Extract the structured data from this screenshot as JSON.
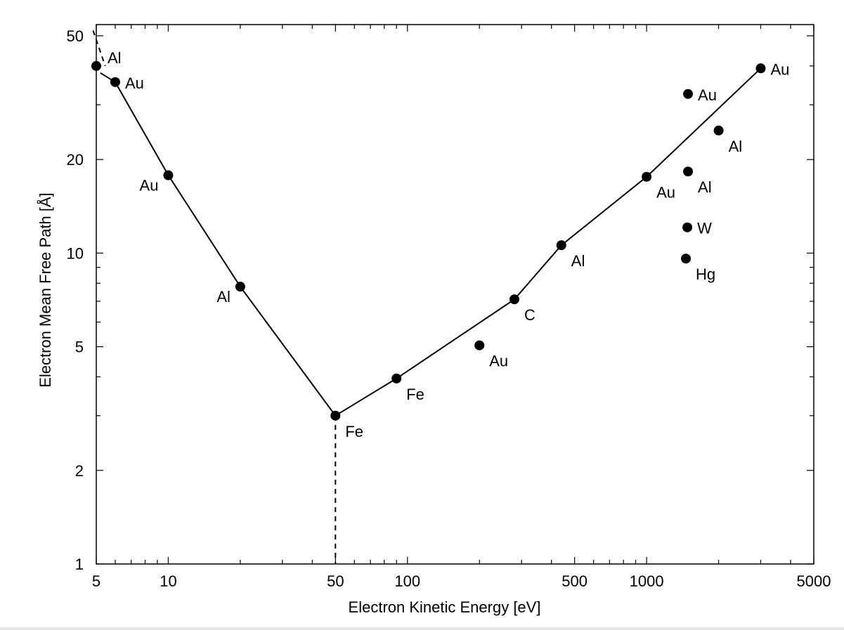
{
  "chart_data": {
    "type": "scatter",
    "title": "",
    "xlabel": "Electron Kinetic Energy  [eV]",
    "ylabel": "Electron Mean Free Path  [Å]",
    "x_scale": "log",
    "y_scale": "log",
    "xlim": [
      5,
      5000
    ],
    "ylim": [
      1,
      55
    ],
    "grid": false,
    "legend": "none",
    "x_ticks": [
      {
        "value": 5,
        "label": "5"
      },
      {
        "value": 10,
        "label": "10"
      },
      {
        "value": 50,
        "label": "50"
      },
      {
        "value": 100,
        "label": "100"
      },
      {
        "value": 500,
        "label": "500"
      },
      {
        "value": 1000,
        "label": "1000"
      },
      {
        "value": 5000,
        "label": "5000"
      }
    ],
    "y_ticks": [
      {
        "value": 1,
        "label": "1"
      },
      {
        "value": 2,
        "label": "2"
      },
      {
        "value": 5,
        "label": "5"
      },
      {
        "value": 10,
        "label": "10"
      },
      {
        "value": 20,
        "label": "20"
      },
      {
        "value": 50,
        "label": "50"
      }
    ],
    "points": [
      {
        "x": 5.0,
        "y": 40,
        "label": "Al",
        "pos": "ne"
      },
      {
        "x": 6.0,
        "y": 35.5,
        "label": "Au",
        "pos": "e"
      },
      {
        "x": 10.0,
        "y": 17.8,
        "label": "Au",
        "pos": "sw"
      },
      {
        "x": 20.0,
        "y": 7.8,
        "label": "Al",
        "pos": "sw"
      },
      {
        "x": 50.0,
        "y": 3.0,
        "label": "Fe",
        "pos": "se"
      },
      {
        "x": 90.0,
        "y": 3.95,
        "label": "Fe",
        "pos": "se"
      },
      {
        "x": 200.0,
        "y": 5.05,
        "label": "Au",
        "pos": "se"
      },
      {
        "x": 280.0,
        "y": 7.1,
        "label": "C",
        "pos": "se"
      },
      {
        "x": 440.0,
        "y": 10.6,
        "label": "Al",
        "pos": "se"
      },
      {
        "x": 1000.0,
        "y": 17.6,
        "label": "Au",
        "pos": "se"
      },
      {
        "x": 1490.0,
        "y": 32.5,
        "label": "Au",
        "pos": "e"
      },
      {
        "x": 1490.0,
        "y": 18.3,
        "label": "Al",
        "pos": "se"
      },
      {
        "x": 1480.0,
        "y": 12.1,
        "label": "W",
        "pos": "e"
      },
      {
        "x": 1460.0,
        "y": 9.6,
        "label": "Hg",
        "pos": "se"
      },
      {
        "x": 2000.0,
        "y": 24.8,
        "label": "Al",
        "pos": "se"
      },
      {
        "x": 3000.0,
        "y": 39.3,
        "label": "Au",
        "pos": "e"
      }
    ],
    "curve": [
      [
        5.2,
        38
      ],
      [
        6.0,
        35.5
      ],
      [
        10.0,
        17.8
      ],
      [
        20.0,
        7.8
      ],
      [
        50.0,
        3.0
      ],
      [
        90.0,
        3.95
      ],
      [
        280.0,
        7.1
      ],
      [
        440.0,
        10.6
      ],
      [
        1000.0,
        17.6
      ],
      [
        3000.0,
        39.3
      ]
    ],
    "dashed_segments": [
      [
        [
          4.85,
          52
        ],
        [
          5.45,
          40
        ]
      ],
      [
        [
          50.0,
          2.8
        ],
        [
          50.0,
          1.0
        ]
      ]
    ]
  }
}
